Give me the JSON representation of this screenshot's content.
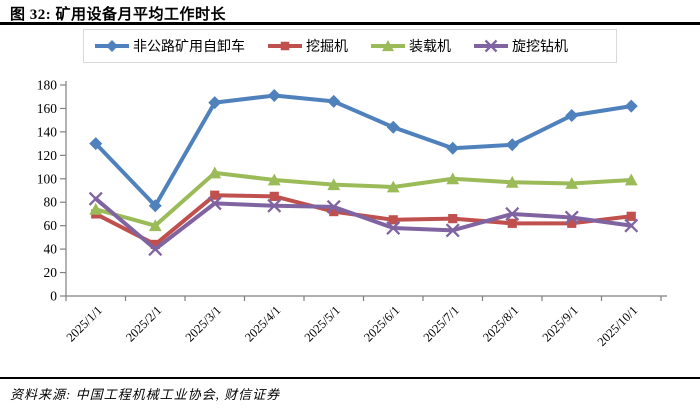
{
  "header": {
    "title": "图 32: 矿用设备月平均工作时长"
  },
  "footer": {
    "source": "资料来源: 中国工程机械工业协会, 财信证券"
  },
  "colors": {
    "series_blue": "#4F81BD",
    "series_red": "#C0504D",
    "series_green": "#9BBB59",
    "series_purple": "#8064A2",
    "axis_line": "#808080",
    "tick_text": "#000000",
    "legend_border": "#D9D9D9"
  },
  "chart_data": {
    "type": "line",
    "title": "矿用设备月平均工作时长",
    "xlabel": "",
    "ylabel": "",
    "ylim": [
      0,
      180
    ],
    "ytick_step": 20,
    "grid": false,
    "legend_position": "top",
    "categories": [
      "2025/1/1",
      "2025/2/1",
      "2025/3/1",
      "2025/4/1",
      "2025/5/1",
      "2025/6/1",
      "2025/7/1",
      "2025/8/1",
      "2025/9/1",
      "2025/10/1"
    ],
    "series": [
      {
        "name": "非公路矿用自卸车",
        "color": "#4F81BD",
        "marker": "diamond",
        "values": [
          130,
          77,
          165,
          171,
          166,
          144,
          126,
          129,
          154,
          162
        ]
      },
      {
        "name": "挖掘机",
        "color": "#C0504D",
        "marker": "square",
        "values": [
          70,
          44,
          86,
          85,
          72,
          65,
          66,
          62,
          62,
          68
        ]
      },
      {
        "name": "装载机",
        "color": "#9BBB59",
        "marker": "triangle",
        "values": [
          74,
          60,
          105,
          99,
          95,
          93,
          100,
          97,
          96,
          99
        ]
      },
      {
        "name": "旋挖钻机",
        "color": "#8064A2",
        "marker": "x",
        "values": [
          83,
          40,
          79,
          77,
          76,
          58,
          56,
          70,
          67,
          60
        ]
      }
    ]
  }
}
